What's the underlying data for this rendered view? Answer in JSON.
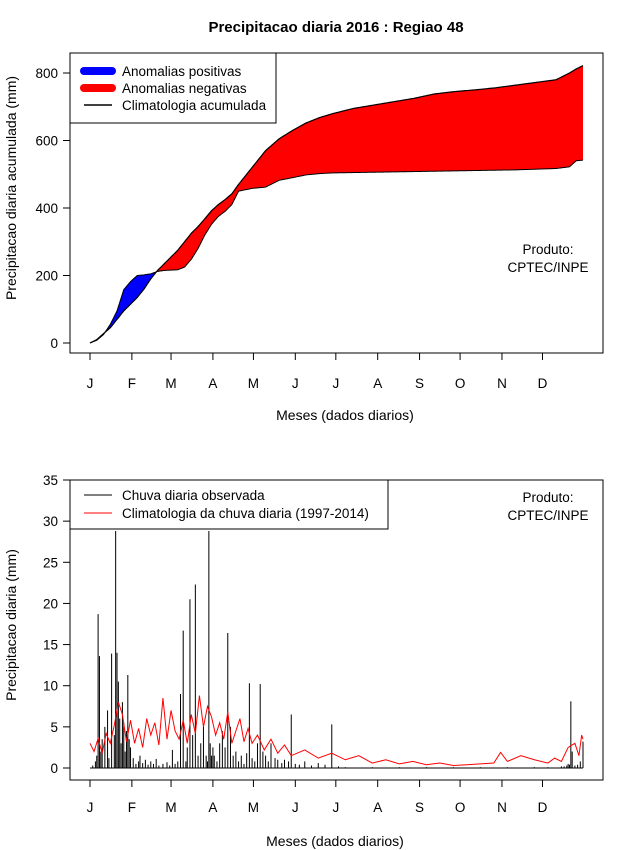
{
  "figure": {
    "title": "Precipitacao diaria 2016 : Regiao 48"
  },
  "months": [
    "J",
    "F",
    "M",
    "A",
    "M",
    "J",
    "J",
    "A",
    "S",
    "O",
    "N",
    "D"
  ],
  "colors": {
    "positive": "#0000ff",
    "negative": "#ff0000",
    "climatology_line": "#000000",
    "observed_bars": "#000000",
    "climatology_daily": "#ff0000"
  },
  "chart_data": [
    {
      "type": "area",
      "title": "Precipitacao diaria 2016 : Regiao 48",
      "xlabel": "Meses (dados diarios)",
      "ylabel": "Precipitacao diaria acumulada (mm)",
      "xlim": [
        0,
        366
      ],
      "ylim": [
        0,
        800
      ],
      "yticks": [
        0,
        200,
        400,
        600,
        800
      ],
      "legend": {
        "position": "top-left",
        "entries": [
          "Anomalias positivas",
          "Anomalias negativas",
          "Climatologia acumulada"
        ]
      },
      "annotation": [
        "Produto:",
        "CPTEC/INPE"
      ],
      "series": [
        {
          "name": "Observado acumulado",
          "x": [
            1,
            6,
            11,
            16,
            21,
            26,
            31,
            36,
            41,
            46,
            51,
            56,
            61,
            66,
            71,
            76,
            81,
            86,
            91,
            96,
            101,
            106,
            111,
            121,
            131,
            141,
            151,
            161,
            171,
            181,
            196,
            211,
            226,
            241,
            256,
            271,
            286,
            301,
            316,
            331,
            346,
            356,
            361,
            366
          ],
          "values": [
            0,
            8,
            25,
            55,
            95,
            158,
            182,
            200,
            202,
            205,
            212,
            215,
            216,
            217,
            225,
            248,
            280,
            320,
            352,
            375,
            390,
            410,
            450,
            458,
            462,
            482,
            490,
            498,
            502,
            504,
            505,
            506,
            507,
            508,
            509,
            510,
            511,
            512,
            513,
            515,
            517,
            522,
            540,
            542
          ]
        },
        {
          "name": "Climatologia acumulada",
          "x": [
            1,
            6,
            11,
            16,
            21,
            26,
            31,
            36,
            41,
            46,
            51,
            56,
            61,
            66,
            71,
            76,
            81,
            86,
            91,
            96,
            101,
            106,
            111,
            121,
            131,
            141,
            151,
            161,
            171,
            181,
            196,
            211,
            226,
            241,
            256,
            271,
            286,
            301,
            316,
            331,
            346,
            356,
            361,
            366
          ],
          "values": [
            0,
            10,
            28,
            45,
            70,
            95,
            115,
            135,
            160,
            190,
            215,
            235,
            255,
            275,
            300,
            325,
            345,
            368,
            392,
            410,
            425,
            442,
            470,
            520,
            570,
            605,
            630,
            652,
            668,
            680,
            695,
            705,
            715,
            725,
            738,
            745,
            750,
            756,
            764,
            772,
            780,
            800,
            812,
            822
          ]
        }
      ]
    },
    {
      "type": "bar",
      "xlabel": "Meses (dados diarios)",
      "ylabel": "Precipitacao diaria (mm)",
      "xlim": [
        0,
        366
      ],
      "ylim": [
        0,
        35
      ],
      "yticks": [
        0,
        5,
        10,
        15,
        20,
        25,
        30,
        35
      ],
      "legend": {
        "position": "top-left",
        "entries": [
          "Chuva diaria observada",
          "Climatologia da chuva diaria (1997-2014)"
        ]
      },
      "annotation": [
        "Produto:",
        "CPTEC/INPE"
      ],
      "series": [
        {
          "name": "Chuva diaria observada",
          "x": [
            3,
            5,
            6,
            7,
            8,
            9,
            10,
            12,
            14,
            15,
            17,
            19,
            20,
            21,
            22,
            23,
            24,
            25,
            26,
            27,
            28,
            29,
            30,
            31,
            33,
            35,
            37,
            38,
            40,
            42,
            44,
            46,
            48,
            50,
            52,
            55,
            58,
            60,
            62,
            64,
            66,
            68,
            70,
            72,
            73,
            75,
            77,
            79,
            81,
            83,
            85,
            87,
            88,
            89,
            90,
            91,
            92,
            93,
            95,
            97,
            99,
            101,
            103,
            105,
            107,
            109,
            111,
            113,
            115,
            117,
            119,
            121,
            123,
            125,
            127,
            129,
            131,
            133,
            135,
            138,
            140,
            143,
            145,
            148,
            150,
            153,
            156,
            160,
            165,
            170,
            175,
            180,
            185,
            190,
            210,
            230,
            250,
            270,
            290,
            310,
            330,
            340,
            350,
            352,
            354,
            355,
            356,
            357,
            358,
            360,
            362,
            364,
            366
          ],
          "values": [
            0.3,
            0.8,
            1.5,
            18.7,
            13.6,
            2.0,
            3.5,
            5.0,
            7.0,
            1.2,
            13.9,
            4.0,
            28.8,
            14.0,
            10.5,
            6.0,
            3.0,
            8.0,
            5.5,
            2.0,
            4.5,
            11.3,
            3.5,
            2.5,
            1.2,
            0.5,
            0.8,
            1.5,
            0.6,
            1.0,
            0.4,
            0.8,
            0.5,
            1.1,
            0.3,
            0.5,
            0.7,
            0.3,
            2.2,
            0.5,
            0.8,
            9.0,
            16.7,
            0.8,
            2.5,
            20.5,
            4.0,
            22.3,
            1.5,
            3.0,
            5.0,
            1.5,
            0.8,
            28.8,
            3.0,
            1.5,
            2.5,
            1.5,
            0.8,
            3.0,
            4.5,
            2.5,
            16.4,
            5.0,
            1.5,
            2.0,
            0.8,
            1.5,
            0.5,
            1.8,
            10.3,
            1.2,
            0.8,
            3.0,
            10.2,
            2.0,
            1.5,
            0.8,
            3.0,
            1.2,
            1.0,
            0.6,
            1.0,
            0.8,
            6.5,
            0.5,
            0.4,
            0.8,
            0.3,
            0.6,
            0.4,
            5.3,
            0.2,
            0.1,
            0.1,
            0.1,
            0.1,
            0.1,
            0.1,
            0.1,
            0.1,
            0.1,
            0.2,
            0.2,
            0.3,
            0.5,
            0.4,
            8.1,
            2.0,
            0.3,
            0.4,
            0.8,
            3.2
          ]
        },
        {
          "name": "Climatologia da chuva diaria (1997-2014)",
          "x": [
            1,
            4,
            7,
            10,
            13,
            16,
            19,
            22,
            25,
            28,
            31,
            34,
            37,
            40,
            43,
            46,
            49,
            52,
            55,
            58,
            61,
            64,
            67,
            70,
            73,
            76,
            79,
            82,
            85,
            88,
            91,
            94,
            97,
            100,
            103,
            106,
            109,
            112,
            115,
            118,
            121,
            125,
            130,
            135,
            140,
            145,
            150,
            160,
            170,
            180,
            190,
            200,
            210,
            220,
            230,
            240,
            250,
            260,
            270,
            280,
            290,
            300,
            305,
            310,
            320,
            330,
            340,
            345,
            350,
            355,
            360,
            363,
            365,
            366
          ],
          "values": [
            3.0,
            2.0,
            3.6,
            1.8,
            4.2,
            3.0,
            5.2,
            8.0,
            6.5,
            3.2,
            5.8,
            3.0,
            4.8,
            2.5,
            6.0,
            4.0,
            5.5,
            2.8,
            8.5,
            3.5,
            7.0,
            4.5,
            3.5,
            5.8,
            3.0,
            6.5,
            4.2,
            8.8,
            5.0,
            7.5,
            6.2,
            4.0,
            5.5,
            3.5,
            6.8,
            3.0,
            4.5,
            6.0,
            3.2,
            4.8,
            3.0,
            4.0,
            2.2,
            3.5,
            1.8,
            2.8,
            1.5,
            2.2,
            1.2,
            1.8,
            1.0,
            1.5,
            0.6,
            1.0,
            0.5,
            0.8,
            0.4,
            0.6,
            0.3,
            0.4,
            0.5,
            0.6,
            1.9,
            0.8,
            1.5,
            1.0,
            0.6,
            1.2,
            0.8,
            2.5,
            3.0,
            1.5,
            4.0,
            3.5
          ]
        }
      ]
    }
  ]
}
